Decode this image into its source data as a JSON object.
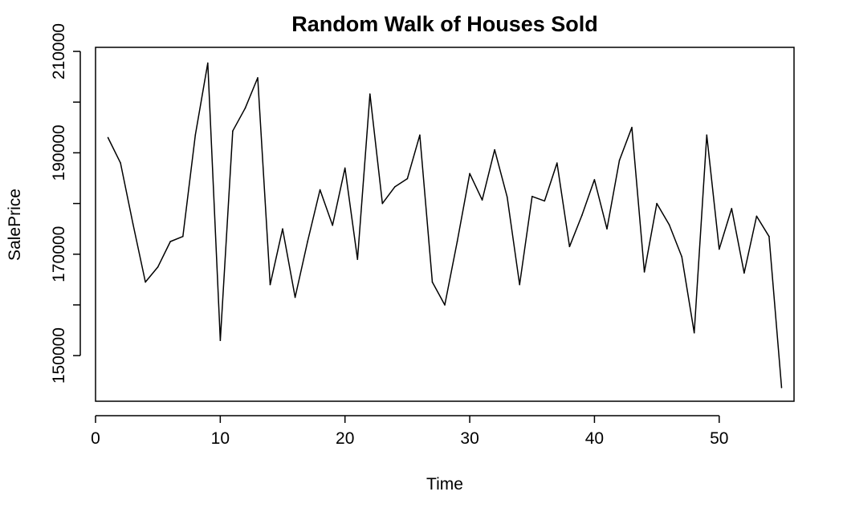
{
  "chart_data": {
    "type": "line",
    "title": "Random Walk of Houses Sold",
    "xlabel": "Time",
    "ylabel": "SalePrice",
    "xlim": [
      0,
      56
    ],
    "ylim": [
      141000,
      210800
    ],
    "x_ticks": [
      0,
      10,
      20,
      30,
      40,
      50
    ],
    "x_tick_labels": [
      "0",
      "10",
      "20",
      "30",
      "40",
      "50"
    ],
    "y_ticks": [
      150000,
      170000,
      190000,
      210000
    ],
    "y_tick_labels": [
      "150000",
      "170000",
      "190000",
      "210000"
    ],
    "y_minor_ticks": [
      160000,
      180000,
      200000
    ],
    "grid": false,
    "line_color": "#000000",
    "series": [
      {
        "x": [
          1,
          2,
          3,
          4,
          5,
          6,
          7,
          8,
          9,
          10,
          11,
          12,
          13,
          14,
          15,
          16,
          17,
          18,
          19,
          20,
          21,
          22,
          23,
          24,
          25,
          26,
          27,
          28,
          29,
          30,
          31,
          32,
          33,
          34,
          35,
          36,
          37,
          38,
          39,
          40,
          41,
          42,
          43,
          44,
          45,
          46,
          47,
          48,
          49,
          50,
          51,
          52,
          53,
          54,
          55
        ],
        "values": [
          193000,
          188000,
          176000,
          164500,
          167500,
          172500,
          173500,
          193500,
          207700,
          153000,
          194300,
          198800,
          204800,
          164000,
          175000,
          161500,
          172500,
          182700,
          175700,
          187000,
          169000,
          201600,
          180000,
          183300,
          184900,
          193500,
          164500,
          160000,
          172500,
          185900,
          180700,
          190600,
          181300,
          164000,
          181400,
          180500,
          188000,
          171500,
          177700,
          184700,
          175000,
          188500,
          195000,
          166500,
          180000,
          175800,
          169500,
          154500,
          193500,
          171000,
          179000,
          166300,
          177500,
          173500,
          143700
        ]
      }
    ]
  }
}
